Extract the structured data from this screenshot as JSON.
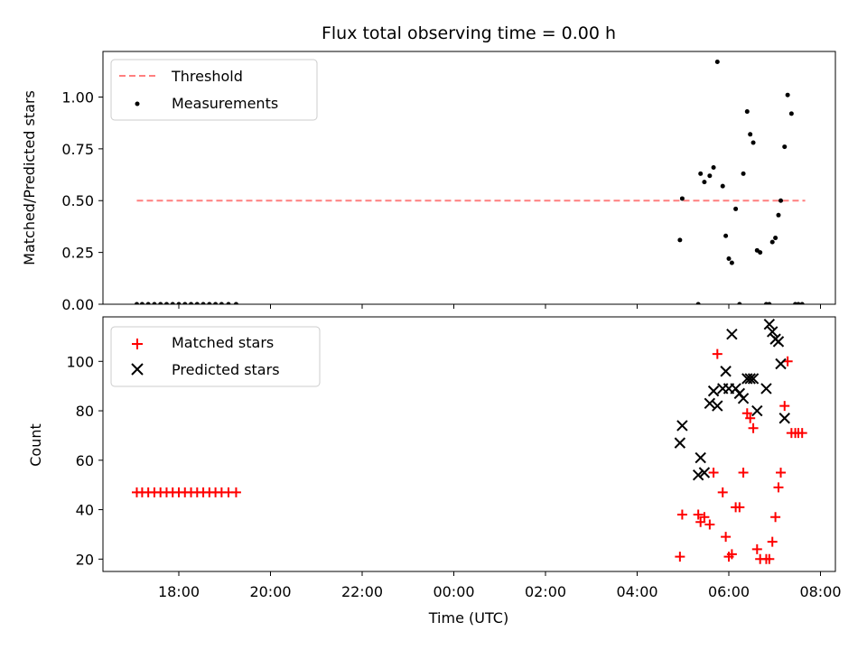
{
  "chart_data": [
    {
      "type": "scatter",
      "title": "Flux total observing time = 0.00 h",
      "ylabel": "Matched/Predicted stars",
      "ylim": [
        0,
        1.22
      ],
      "yticks": [
        "0.00",
        "0.25",
        "0.50",
        "0.75",
        "1.00"
      ],
      "ytick_values": [
        0,
        0.25,
        0.5,
        0.75,
        1.0
      ],
      "legend": {
        "location": "upper-left",
        "entries": [
          "Threshold",
          "Measurements"
        ]
      },
      "series": [
        {
          "name": "Threshold",
          "kind": "dashed-line",
          "color": "#ff7f7f",
          "y": 0.5,
          "x_range": [
            "17:05",
            "07:40"
          ]
        },
        {
          "name": "Measurements",
          "kind": "dots",
          "color": "#000000",
          "points": [
            [
              "17:05",
              0
            ],
            [
              "17:12",
              0
            ],
            [
              "17:20",
              0
            ],
            [
              "17:28",
              0
            ],
            [
              "17:36",
              0
            ],
            [
              "17:44",
              0
            ],
            [
              "17:52",
              0
            ],
            [
              "18:00",
              0
            ],
            [
              "18:08",
              0
            ],
            [
              "18:16",
              0
            ],
            [
              "18:24",
              0
            ],
            [
              "18:32",
              0
            ],
            [
              "18:40",
              0
            ],
            [
              "18:48",
              0
            ],
            [
              "18:56",
              0
            ],
            [
              "19:05",
              0
            ],
            [
              "19:15",
              0
            ],
            [
              "04:56",
              0.31
            ],
            [
              "04:59",
              0.51
            ],
            [
              "05:20",
              0
            ],
            [
              "05:23",
              0.63
            ],
            [
              "05:28",
              0.59
            ],
            [
              "05:35",
              0.62
            ],
            [
              "05:40",
              0.66
            ],
            [
              "05:45",
              1.17
            ],
            [
              "05:52",
              0.57
            ],
            [
              "05:56",
              0.33
            ],
            [
              "06:00",
              0.22
            ],
            [
              "06:04",
              0.2
            ],
            [
              "06:09",
              0.46
            ],
            [
              "06:14",
              0
            ],
            [
              "06:19",
              0.63
            ],
            [
              "06:24",
              0.93
            ],
            [
              "06:28",
              0.82
            ],
            [
              "06:32",
              0.78
            ],
            [
              "06:37",
              0.26
            ],
            [
              "06:41",
              0.25
            ],
            [
              "06:49",
              0
            ],
            [
              "06:53",
              0
            ],
            [
              "06:57",
              0.3
            ],
            [
              "07:01",
              0.32
            ],
            [
              "07:05",
              0.43
            ],
            [
              "07:08",
              0.5
            ],
            [
              "07:13",
              0.76
            ],
            [
              "07:17",
              1.01
            ],
            [
              "07:22",
              0.92
            ],
            [
              "07:27",
              0
            ],
            [
              "07:31",
              0
            ],
            [
              "07:36",
              0
            ]
          ]
        }
      ]
    },
    {
      "type": "scatter",
      "xlabel": "Time (UTC)",
      "ylabel": "Count",
      "ylim": [
        15,
        118
      ],
      "yticks": [
        "20",
        "40",
        "60",
        "80",
        "100"
      ],
      "ytick_values": [
        20,
        40,
        60,
        80,
        100
      ],
      "xticks": [
        "18:00",
        "20:00",
        "22:00",
        "00:00",
        "02:00",
        "04:00",
        "06:00",
        "08:00"
      ],
      "legend": {
        "location": "upper-left",
        "entries": [
          "Matched stars",
          "Predicted stars"
        ]
      },
      "series": [
        {
          "name": "Matched stars",
          "kind": "plus",
          "color": "#ff0000",
          "points": [
            [
              "17:05",
              47
            ],
            [
              "17:12",
              47
            ],
            [
              "17:20",
              47
            ],
            [
              "17:28",
              47
            ],
            [
              "17:36",
              47
            ],
            [
              "17:44",
              47
            ],
            [
              "17:52",
              47
            ],
            [
              "18:00",
              47
            ],
            [
              "18:08",
              47
            ],
            [
              "18:16",
              47
            ],
            [
              "18:24",
              47
            ],
            [
              "18:32",
              47
            ],
            [
              "18:40",
              47
            ],
            [
              "18:48",
              47
            ],
            [
              "18:56",
              47
            ],
            [
              "19:05",
              47
            ],
            [
              "19:15",
              47
            ],
            [
              "04:56",
              21
            ],
            [
              "04:59",
              38
            ],
            [
              "05:20",
              38
            ],
            [
              "05:23",
              35
            ],
            [
              "05:28",
              37
            ],
            [
              "05:35",
              34
            ],
            [
              "05:40",
              55
            ],
            [
              "05:45",
              103
            ],
            [
              "05:52",
              47
            ],
            [
              "05:56",
              29
            ],
            [
              "06:00",
              21
            ],
            [
              "06:04",
              22
            ],
            [
              "06:09",
              41
            ],
            [
              "06:14",
              41
            ],
            [
              "06:19",
              55
            ],
            [
              "06:24",
              79
            ],
            [
              "06:28",
              77
            ],
            [
              "06:32",
              73
            ],
            [
              "06:37",
              24
            ],
            [
              "06:41",
              20
            ],
            [
              "06:49",
              20
            ],
            [
              "06:53",
              20
            ],
            [
              "06:57",
              27
            ],
            [
              "07:01",
              37
            ],
            [
              "07:05",
              49
            ],
            [
              "07:08",
              55
            ],
            [
              "07:13",
              82
            ],
            [
              "07:17",
              100
            ],
            [
              "07:22",
              71
            ],
            [
              "07:27",
              71
            ],
            [
              "07:31",
              71
            ],
            [
              "07:36",
              71
            ]
          ]
        },
        {
          "name": "Predicted stars",
          "kind": "cross",
          "color": "#000000",
          "points": [
            [
              "04:56",
              67
            ],
            [
              "04:59",
              74
            ],
            [
              "05:20",
              54
            ],
            [
              "05:23",
              61
            ],
            [
              "05:28",
              55
            ],
            [
              "05:35",
              83
            ],
            [
              "05:40",
              88
            ],
            [
              "05:45",
              82
            ],
            [
              "05:52",
              89
            ],
            [
              "05:56",
              96
            ],
            [
              "06:00",
              89
            ],
            [
              "06:04",
              111
            ],
            [
              "06:09",
              89
            ],
            [
              "06:14",
              87
            ],
            [
              "06:19",
              85
            ],
            [
              "06:24",
              93
            ],
            [
              "06:28",
              93
            ],
            [
              "06:32",
              93
            ],
            [
              "06:37",
              80
            ],
            [
              "06:49",
              89
            ],
            [
              "06:53",
              115
            ],
            [
              "06:57",
              112
            ],
            [
              "07:01",
              109
            ],
            [
              "07:05",
              108
            ],
            [
              "07:08",
              99
            ],
            [
              "07:13",
              77
            ]
          ]
        }
      ]
    }
  ]
}
